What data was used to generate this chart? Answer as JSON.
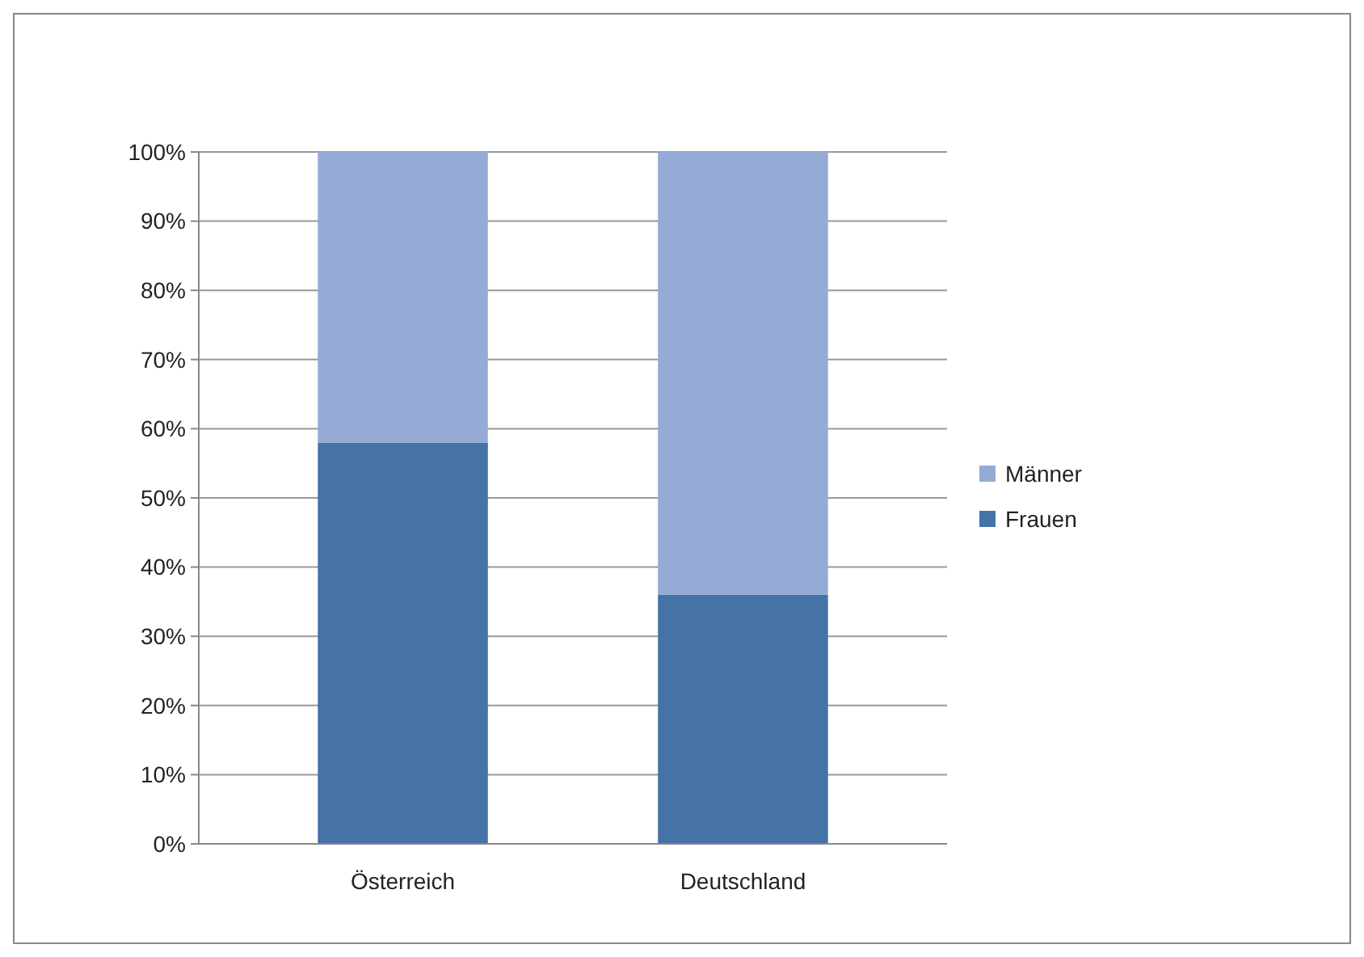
{
  "chart_data": {
    "type": "bar",
    "stacked": true,
    "categories": [
      "Österreich",
      "Deutschland"
    ],
    "series": [
      {
        "name": "Frauen",
        "color": "#4572a7",
        "values": [
          58,
          36
        ]
      },
      {
        "name": "Männer",
        "color": "#95abd5",
        "values": [
          42,
          64
        ]
      }
    ],
    "ylim": [
      0,
      100
    ],
    "yticks": [
      {
        "value": 0,
        "label": "0%"
      },
      {
        "value": 10,
        "label": "10%"
      },
      {
        "value": 20,
        "label": "20%"
      },
      {
        "value": 30,
        "label": "30%"
      },
      {
        "value": 40,
        "label": "40%"
      },
      {
        "value": 50,
        "label": "50%"
      },
      {
        "value": 60,
        "label": "60%"
      },
      {
        "value": 70,
        "label": "70%"
      },
      {
        "value": 80,
        "label": "80%"
      },
      {
        "value": 90,
        "label": "90%"
      },
      {
        "value": 100,
        "label": "100%"
      }
    ],
    "grid": "y",
    "legend": "right"
  }
}
